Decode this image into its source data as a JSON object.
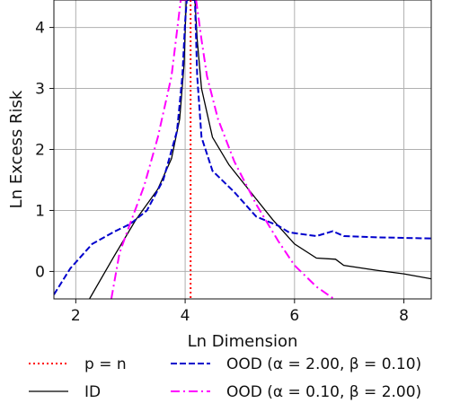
{
  "chart_data": {
    "type": "line",
    "xlabel": "Ln Dimension",
    "ylabel": "Ln Excess Risk",
    "xlim": [
      1.6,
      8.5
    ],
    "ylim": [
      -0.45,
      4.45
    ],
    "xticks": [
      2,
      4,
      6,
      8
    ],
    "yticks": [
      0,
      1,
      2,
      3,
      4
    ],
    "grid": true,
    "legend_placement": "below",
    "vline": {
      "x": 4.1,
      "label": "p = n",
      "color": "#ff0000",
      "style": "dotted"
    },
    "series": [
      {
        "name": "ID",
        "color": "#000000",
        "style": "solid",
        "x": [
          2.25,
          2.7,
          3.1,
          3.5,
          3.75,
          3.9,
          3.98,
          4.02,
          4.18,
          4.22,
          4.3,
          4.5,
          4.8,
          5.2,
          5.6,
          6.0,
          6.4,
          6.75,
          6.9,
          7.5,
          8.0,
          8.5
        ],
        "y": [
          -0.45,
          0.25,
          0.85,
          1.35,
          1.85,
          2.5,
          3.4,
          4.45,
          4.45,
          3.8,
          3.0,
          2.2,
          1.75,
          1.3,
          0.85,
          0.45,
          0.22,
          0.2,
          0.1,
          0.02,
          -0.04,
          -0.12
        ]
      },
      {
        "name": "OOD (α = 2.00, β = 0.10)",
        "color": "#0000cc",
        "style": "dashed",
        "x": [
          1.6,
          1.9,
          2.3,
          2.7,
          3.0,
          3.3,
          3.6,
          3.85,
          3.95,
          4.0,
          4.03,
          4.18,
          4.22,
          4.3,
          4.5,
          4.9,
          5.3,
          5.7,
          5.9,
          6.4,
          6.55,
          6.7,
          6.9,
          7.5,
          8.0,
          8.5
        ],
        "y": [
          -0.38,
          0.05,
          0.45,
          0.65,
          0.78,
          1.0,
          1.5,
          2.3,
          3.2,
          4.1,
          4.45,
          4.45,
          3.2,
          2.2,
          1.65,
          1.3,
          0.9,
          0.75,
          0.64,
          0.58,
          0.62,
          0.66,
          0.58,
          0.56,
          0.55,
          0.54
        ]
      },
      {
        "name": "OOD (α = 0.10, β = 2.00)",
        "color": "#ff00ff",
        "style": "dashdot",
        "x": [
          2.65,
          2.8,
          3.0,
          3.25,
          3.5,
          3.75,
          3.92,
          4.2,
          4.3,
          4.4,
          4.6,
          4.9,
          5.3,
          5.7,
          6.0,
          6.4,
          6.8
        ],
        "y": [
          -0.45,
          0.3,
          0.8,
          1.4,
          2.2,
          3.2,
          4.45,
          4.45,
          3.8,
          3.2,
          2.5,
          1.8,
          1.1,
          0.5,
          0.1,
          -0.25,
          -0.5
        ]
      }
    ]
  }
}
